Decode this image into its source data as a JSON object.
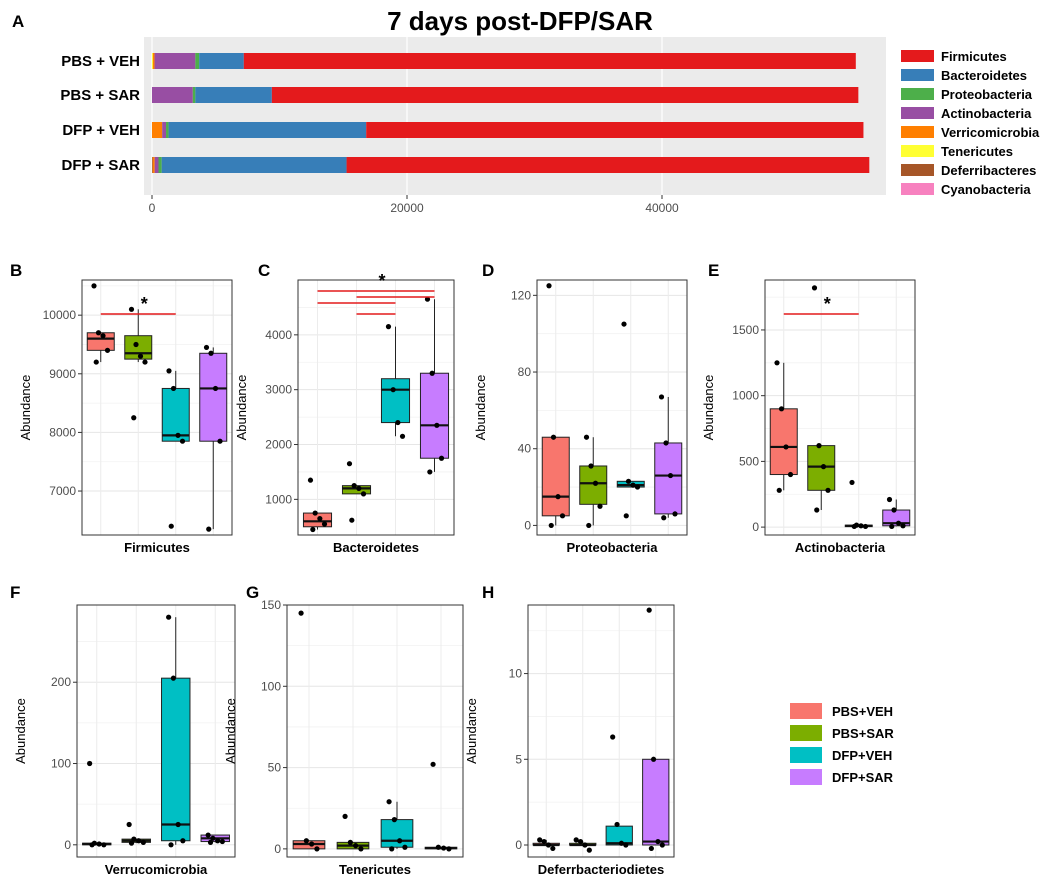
{
  "title": "7 days post-DFP/SAR",
  "colors": {
    "group": {
      "PBS+VEH": "#F8766D",
      "PBS+SAR": "#7CAE00",
      "DFP+VEH": "#00BFC4",
      "DFP+SAR": "#C77CFF"
    },
    "sig": "#e41a1c"
  },
  "group_legend": [
    "PBS+VEH",
    "PBS+SAR",
    "DFP+VEH",
    "DFP+SAR"
  ],
  "chart_data": [
    {
      "panel": "A",
      "type": "bar",
      "orientation": "horizontal",
      "stacked": true,
      "title": "7 days post-DFP/SAR",
      "categories": [
        "PBS + VEH",
        "PBS + SAR",
        "DFP + VEH",
        "DFP + SAR"
      ],
      "xticks": [
        0,
        20000,
        40000
      ],
      "xlim": [
        0,
        58000
      ],
      "legend": "right",
      "series": [
        {
          "name": "Cyanobacteria",
          "color": "#f781bf",
          "values": [
            0,
            0,
            0,
            0
          ]
        },
        {
          "name": "Deferribacteres",
          "color": "#a65628",
          "values": [
            0,
            0,
            0,
            60
          ]
        },
        {
          "name": "Tenericutes",
          "color": "#ffff33",
          "values": [
            70,
            0,
            0,
            0
          ]
        },
        {
          "name": "Verricomicrobia",
          "color": "#ff7f00",
          "values": [
            130,
            0,
            800,
            150
          ]
        },
        {
          "name": "Actinobacteria",
          "color": "#984ea3",
          "values": [
            3200,
            3200,
            300,
            300
          ]
        },
        {
          "name": "Proteobacteria",
          "color": "#4daf4a",
          "values": [
            300,
            200,
            200,
            250
          ]
        },
        {
          "name": "Bacteroidetes",
          "color": "#377eb8",
          "values": [
            3500,
            6000,
            15500,
            14500
          ]
        },
        {
          "name": "Firmicutes",
          "color": "#e41a1c",
          "values": [
            48000,
            46000,
            39000,
            41000
          ]
        }
      ],
      "legend_order": [
        "Firmicutes",
        "Bacteroidetes",
        "Proteobacteria",
        "Actinobacteria",
        "Verricomicrobia",
        "Tenericutes",
        "Deferribacteres",
        "Cyanobacteria"
      ]
    },
    {
      "panel": "B",
      "type": "box",
      "xlabel": "Firmicutes",
      "ylabel": "Abundance",
      "ylim": [
        6250,
        10600
      ],
      "yticks": [
        7000,
        8000,
        9000,
        10000
      ],
      "ytick_labels": [
        "7000",
        "8000",
        "9000",
        "10000"
      ],
      "groups": [
        "PBS+VEH",
        "PBS+SAR",
        "DFP+VEH",
        "DFP+SAR"
      ],
      "boxes": [
        {
          "lo": 9200,
          "q1": 9400,
          "med": 9600,
          "q3": 9700,
          "hi": 9700,
          "points": [
            10500,
            9700,
            9650,
            9400,
            9200
          ]
        },
        {
          "lo": 9200,
          "q1": 9250,
          "med": 9350,
          "q3": 9650,
          "hi": 10100,
          "points": [
            10100,
            9500,
            9300,
            9200,
            8250
          ]
        },
        {
          "lo": 7850,
          "q1": 7850,
          "med": 7950,
          "q3": 8750,
          "hi": 9050,
          "points": [
            9050,
            8750,
            7950,
            7850,
            6400
          ]
        },
        {
          "lo": 6350,
          "q1": 7850,
          "med": 8750,
          "q3": 9350,
          "hi": 9450,
          "points": [
            9450,
            9350,
            8750,
            7850,
            6350
          ]
        }
      ],
      "sig": [
        {
          "from": 0,
          "to": 2,
          "star": "*"
        }
      ]
    },
    {
      "panel": "C",
      "type": "box",
      "xlabel": "Bacteroidetes",
      "ylabel": "Abundance",
      "ylim": [
        350,
        5000
      ],
      "yticks": [
        1000,
        2000,
        3000,
        4000
      ],
      "ytick_labels": [
        "1000",
        "2000",
        "3000",
        "4000"
      ],
      "groups": [
        "PBS+VEH",
        "PBS+SAR",
        "DFP+VEH",
        "DFP+SAR"
      ],
      "boxes": [
        {
          "lo": 450,
          "q1": 500,
          "med": 600,
          "q3": 750,
          "hi": 750,
          "points": [
            1350,
            750,
            650,
            550,
            450
          ]
        },
        {
          "lo": 1100,
          "q1": 1100,
          "med": 1200,
          "q3": 1250,
          "hi": 1250,
          "points": [
            1650,
            1250,
            1200,
            1100,
            620
          ]
        },
        {
          "lo": 2150,
          "q1": 2400,
          "med": 3000,
          "q3": 3200,
          "hi": 4150,
          "points": [
            4150,
            3000,
            2400,
            2150
          ]
        },
        {
          "lo": 1500,
          "q1": 1750,
          "med": 2350,
          "q3": 3300,
          "hi": 4650,
          "points": [
            4650,
            3300,
            2350,
            1750,
            1500
          ]
        }
      ],
      "sig": [
        {
          "from": 0,
          "to": 3,
          "star": "*"
        },
        {
          "from": 1,
          "to": 3
        },
        {
          "from": 0,
          "to": 2
        },
        {
          "from": 1,
          "to": 2
        }
      ]
    },
    {
      "panel": "D",
      "type": "box",
      "xlabel": "Proteobacteria",
      "ylabel": "Abundance",
      "ylim": [
        -5,
        128
      ],
      "yticks": [
        0,
        40,
        80,
        120
      ],
      "ytick_labels": [
        "0",
        "40",
        "80",
        "120"
      ],
      "groups": [
        "PBS+VEH",
        "PBS+SAR",
        "DFP+VEH",
        "DFP+SAR"
      ],
      "boxes": [
        {
          "lo": 0,
          "q1": 5,
          "med": 15,
          "q3": 46,
          "hi": 46,
          "points": [
            125,
            46,
            15,
            5,
            0
          ]
        },
        {
          "lo": 0,
          "q1": 11,
          "med": 22,
          "q3": 31,
          "hi": 46,
          "points": [
            46,
            31,
            22,
            10,
            0
          ]
        },
        {
          "lo": 20,
          "q1": 20,
          "med": 21,
          "q3": 23,
          "hi": 23,
          "points": [
            105,
            23,
            21,
            20,
            5
          ]
        },
        {
          "lo": 4,
          "q1": 6,
          "med": 26,
          "q3": 43,
          "hi": 67,
          "points": [
            67,
            43,
            26,
            6,
            4
          ]
        }
      ],
      "sig": []
    },
    {
      "panel": "E",
      "type": "box",
      "xlabel": "Actinobacteria",
      "ylabel": "Abundance",
      "ylim": [
        -60,
        1880
      ],
      "yticks": [
        0,
        500,
        1000,
        1500
      ],
      "ytick_labels": [
        "0",
        "500",
        "1000",
        "1500"
      ],
      "groups": [
        "PBS+VEH",
        "PBS+SAR",
        "DFP+VEH",
        "DFP+SAR"
      ],
      "boxes": [
        {
          "lo": 280,
          "q1": 400,
          "med": 610,
          "q3": 900,
          "hi": 1250,
          "points": [
            1250,
            900,
            610,
            400,
            280
          ]
        },
        {
          "lo": 130,
          "q1": 280,
          "med": 460,
          "q3": 620,
          "hi": 620,
          "points": [
            1820,
            620,
            460,
            280,
            130
          ]
        },
        {
          "lo": 5,
          "q1": 5,
          "med": 10,
          "q3": 15,
          "hi": 15,
          "points": [
            340,
            15,
            10,
            5,
            5
          ]
        },
        {
          "lo": 5,
          "q1": 10,
          "med": 30,
          "q3": 130,
          "hi": 210,
          "points": [
            210,
            130,
            30,
            10,
            5
          ]
        }
      ],
      "sig": [
        {
          "from": 0,
          "to": 2,
          "star": "*"
        }
      ]
    },
    {
      "panel": "F",
      "type": "box",
      "xlabel": "Verrucomicrobia",
      "ylabel": "Abundance",
      "ylim": [
        -15,
        295
      ],
      "yticks": [
        0,
        100,
        200
      ],
      "ytick_labels": [
        "0",
        "100",
        "200"
      ],
      "groups": [
        "PBS+VEH",
        "PBS+SAR",
        "DFP+VEH",
        "DFP+SAR"
      ],
      "boxes": [
        {
          "lo": 0,
          "q1": 0,
          "med": 1,
          "q3": 2,
          "hi": 2,
          "points": [
            100,
            2,
            1,
            0,
            0
          ]
        },
        {
          "lo": 2,
          "q1": 3,
          "med": 5,
          "q3": 7,
          "hi": 7,
          "points": [
            25,
            7,
            5,
            3,
            2
          ]
        },
        {
          "lo": 0,
          "q1": 5,
          "med": 25,
          "q3": 205,
          "hi": 280,
          "points": [
            280,
            205,
            25,
            5,
            0
          ]
        },
        {
          "lo": 3,
          "q1": 4,
          "med": 8,
          "q3": 12,
          "hi": 12,
          "points": [
            12,
            8,
            5,
            4,
            3
          ]
        }
      ],
      "sig": []
    },
    {
      "panel": "G",
      "type": "box",
      "xlabel": "Tenericutes",
      "ylabel": "Abundance",
      "ylim": [
        -5,
        150
      ],
      "yticks": [
        0,
        50,
        100,
        150
      ],
      "ytick_labels": [
        "0",
        "50",
        "100",
        "150"
      ],
      "groups": [
        "PBS+VEH",
        "PBS+SAR",
        "DFP+VEH",
        "DFP+SAR"
      ],
      "boxes": [
        {
          "lo": 0,
          "q1": 0,
          "med": 3,
          "q3": 5,
          "hi": 5,
          "points": [
            145,
            5,
            3,
            0
          ]
        },
        {
          "lo": 0,
          "q1": 0,
          "med": 2,
          "q3": 4,
          "hi": 4,
          "points": [
            20,
            4,
            2,
            0
          ]
        },
        {
          "lo": 0,
          "q1": 1,
          "med": 5,
          "q3": 18,
          "hi": 29,
          "points": [
            29,
            18,
            5,
            1,
            0
          ]
        },
        {
          "lo": 0,
          "q1": 0,
          "med": 0.5,
          "q3": 1,
          "hi": 1,
          "points": [
            52,
            1,
            0.5,
            0
          ]
        }
      ],
      "sig": []
    },
    {
      "panel": "H",
      "type": "box",
      "xlabel": "Deferrbacteriodietes",
      "ylabel": "Abundance",
      "ylim": [
        -0.7,
        14
      ],
      "yticks": [
        0,
        5,
        10
      ],
      "ytick_labels": [
        "0",
        "5",
        "10"
      ],
      "groups": [
        "PBS+VEH",
        "PBS+SAR",
        "DFP+VEH",
        "DFP+SAR"
      ],
      "boxes": [
        {
          "lo": 0,
          "q1": 0,
          "med": 0,
          "q3": 0.1,
          "hi": 0.3,
          "points": [
            0.3,
            0.2,
            0,
            -0.2
          ]
        },
        {
          "lo": 0,
          "q1": 0,
          "med": 0,
          "q3": 0.1,
          "hi": 0.2,
          "points": [
            0.3,
            0.2,
            0,
            -0.3
          ]
        },
        {
          "lo": 0,
          "q1": 0,
          "med": 0.1,
          "q3": 1.1,
          "hi": 1.1,
          "points": [
            6.3,
            1.2,
            0.1,
            0
          ]
        },
        {
          "lo": 0,
          "q1": 0,
          "med": 0.2,
          "q3": 5,
          "hi": 5,
          "points": [
            13.7,
            5,
            0.2,
            0,
            -0.2
          ]
        }
      ],
      "sig": []
    }
  ]
}
